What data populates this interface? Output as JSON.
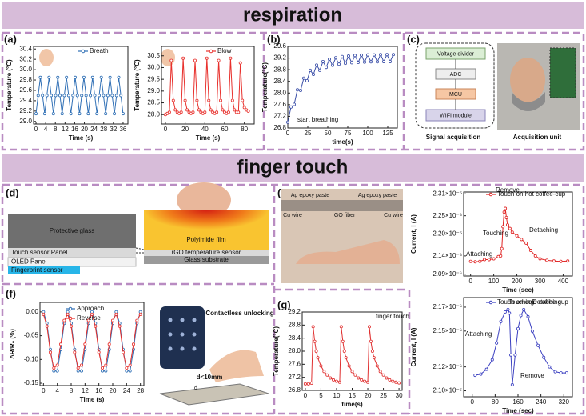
{
  "sections": [
    "respiration",
    "finger touch"
  ],
  "labels": {
    "panels": [
      "(a)",
      "(b)",
      "(c)",
      "(d)",
      "(e)",
      "(f)",
      "(g)"
    ],
    "signal_chain": [
      "Voltage divider",
      "ADC",
      "MCU",
      "WIFI module"
    ],
    "signal_acquisition": "Signal acquisition",
    "acquisition_unit": "Acquisition unit",
    "display_layers": [
      "Protective glass",
      "Touch sensor Panel",
      "OLED Panel",
      "Fingerprint sensor"
    ],
    "sensor_layers": [
      "Polyimide film",
      "rGO temperature sensor",
      "Glass substrate"
    ],
    "photo_labels": [
      "Ag epoxy paste",
      "Ag epoxy paste",
      "rGO fiber",
      "Cu wire",
      "Cu wire"
    ],
    "unlock_title": "Contactless unlocking",
    "distance": "d<10mm",
    "distance_symbol": "d"
  },
  "chart_data": [
    {
      "type": "line",
      "xlabel": "Time (s)",
      "ylabel": "Temperature (°C)",
      "xlim": [
        -1,
        38
      ],
      "ylim": [
        28.95,
        30.45
      ],
      "xticks": [
        0,
        4,
        8,
        12,
        16,
        20,
        24,
        28,
        32,
        36
      ],
      "yticks": [
        {
          "value": 29,
          "label": "29.0"
        },
        29.2,
        29.4,
        29.6,
        29.8,
        {
          "value": 30,
          "label": "30.0"
        },
        30.2,
        30.4
      ],
      "series": [
        {
          "name": "Breath",
          "color": "#2f6fb5",
          "x": [
            0,
            0.9,
            1.8,
            2.7,
            3.6,
            4.5,
            5.4,
            6.3,
            7.2,
            8.1,
            9,
            9.9,
            10.8,
            11.7,
            12.6,
            13.5,
            14.4,
            15.3,
            16.2,
            17.1,
            18,
            18.9,
            19.8,
            20.7,
            21.6,
            22.5,
            23.4,
            24.3,
            25.2,
            26.1,
            27,
            27.9,
            28.8,
            29.7,
            30.6,
            31.5,
            32.4,
            33.3,
            34.2,
            35.1,
            36
          ],
          "values": [
            29.15,
            29.5,
            29.85,
            29.5,
            29.15,
            29.5,
            29.85,
            29.5,
            29.15,
            29.5,
            29.85,
            29.5,
            29.15,
            29.5,
            29.85,
            29.5,
            29.15,
            29.5,
            29.85,
            29.5,
            29.15,
            29.5,
            29.85,
            29.5,
            29.15,
            29.5,
            29.85,
            29.5,
            29.15,
            29.5,
            29.85,
            29.5,
            29.15,
            29.5,
            29.85,
            29.5,
            29.15,
            29.5,
            29.85,
            29.5,
            29.15
          ]
        }
      ]
    },
    {
      "type": "line",
      "xlabel": "Time (s)",
      "ylabel": "Temperature (°C)",
      "xlim": [
        -4,
        90
      ],
      "ylim": [
        27.6,
        30.9
      ],
      "xticks": [
        0,
        20,
        40,
        60,
        80
      ],
      "yticks": [
        {
          "value": 28,
          "label": "28.0"
        },
        28.5,
        {
          "value": 29,
          "label": "29.0"
        },
        29.5,
        {
          "value": 30,
          "label": "30.0"
        },
        30.5
      ],
      "series": [
        {
          "name": "Blow",
          "color": "#e8302c",
          "x": [
            0,
            2,
            4,
            6,
            8,
            10,
            12,
            14,
            16,
            18,
            20,
            22,
            24,
            26,
            28,
            30,
            32,
            34,
            36,
            38,
            40,
            42,
            44,
            46,
            48,
            50,
            52,
            54,
            56,
            58,
            60,
            62,
            64,
            66,
            68,
            70,
            72,
            74,
            76,
            78,
            80,
            82,
            84
          ],
          "values": [
            28.0,
            28.05,
            28.1,
            30.3,
            28.6,
            28.2,
            28.1,
            28.05,
            28.1,
            30.4,
            28.6,
            28.2,
            28.1,
            28.05,
            28.1,
            30.3,
            28.6,
            28.2,
            28.1,
            28.05,
            28.1,
            30.4,
            28.6,
            28.2,
            28.1,
            28.05,
            28.1,
            30.3,
            28.6,
            28.2,
            28.1,
            28.05,
            28.1,
            30.4,
            28.6,
            28.2,
            28.1,
            28.1,
            30.2,
            28.6,
            28.3,
            28.2,
            28.15
          ]
        }
      ]
    },
    {
      "type": "line",
      "xlabel": "time(s)",
      "ylabel": "Temperature(°C)",
      "xlim": [
        0,
        137
      ],
      "ylim": [
        26.8,
        29.6
      ],
      "xticks": [
        0,
        25,
        50,
        75,
        100,
        125
      ],
      "yticks": [
        26.8,
        27.2,
        27.6,
        {
          "value": 28,
          "label": "28.0"
        },
        28.4,
        28.8,
        29.2,
        29.6
      ],
      "annotations": [
        "start breathing"
      ],
      "series": [
        {
          "name": null,
          "color": "#3b4fa8",
          "x": [
            0,
            4,
            8,
            12,
            16,
            20,
            24,
            28,
            32,
            36,
            40,
            44,
            48,
            52,
            56,
            60,
            64,
            68,
            72,
            76,
            80,
            84,
            88,
            92,
            96,
            100,
            104,
            108,
            112,
            116,
            120,
            124,
            128,
            132
          ],
          "values": [
            27.0,
            27.52,
            27.61,
            28.11,
            28.09,
            28.51,
            28.42,
            28.78,
            28.64,
            28.96,
            28.78,
            29.08,
            28.88,
            29.16,
            28.95,
            29.21,
            28.99,
            29.25,
            29.02,
            29.27,
            29.04,
            29.29,
            29.05,
            29.3,
            29.06,
            29.31,
            29.07,
            29.31,
            29.07,
            29.32,
            29.08,
            29.32,
            29.08,
            29.32
          ]
        }
      ]
    },
    {
      "type": "line",
      "xlabel": "Time (sec)",
      "ylabel": "Current, I (A)",
      "xlim": [
        -30,
        440
      ],
      "ylim": [
        2.085e-06,
        2.315e-06
      ],
      "xticks": [
        0,
        100,
        200,
        300,
        400
      ],
      "yticks": [
        {
          "value": 2.09e-06,
          "label": "2.09×10⁻⁶"
        },
        {
          "value": 2.14e-06,
          "label": "2.14×10⁻⁶"
        },
        {
          "value": 2.2e-06,
          "label": "2.20×10⁻⁶"
        },
        {
          "value": 2.25e-06,
          "label": "2.25×10⁻⁶"
        },
        {
          "value": 2.31e-06,
          "label": "2.31×10⁻⁶"
        }
      ],
      "annotations": [
        "Attaching",
        "Touching",
        "Remove",
        "Detaching"
      ],
      "series": [
        {
          "name": "Touch on hot coffee-cup",
          "color": "#e02424",
          "x": [
            0,
            20,
            40,
            60,
            80,
            100,
            120,
            130,
            135,
            140,
            145,
            150,
            155,
            160,
            170,
            180,
            200,
            220,
            240,
            260,
            280,
            300,
            330,
            360,
            390,
            420
          ],
          "values": [
            2.125e-06,
            2.124e-06,
            2.125e-06,
            2.13e-06,
            2.13e-06,
            2.132e-06,
            2.138e-06,
            2.14e-06,
            2.16e-06,
            2.22e-06,
            2.26e-06,
            2.27e-06,
            2.245e-06,
            2.225e-06,
            2.215e-06,
            2.205e-06,
            2.195e-06,
            2.185e-06,
            2.175e-06,
            2.155e-06,
            2.14e-06,
            2.132e-06,
            2.128e-06,
            2.126e-06,
            2.125e-06,
            2.126e-06
          ]
        }
      ]
    },
    {
      "type": "line",
      "xlabel": "Time (sec)",
      "ylabel": "Current, I (A)",
      "xlim": [
        -30,
        350
      ],
      "ylim": [
        2.095e-06,
        2.178e-06
      ],
      "xticks": [
        0,
        80,
        160,
        240,
        320
      ],
      "yticks": [
        {
          "value": 2.1e-06,
          "label": "2.10×10⁻⁶"
        },
        {
          "value": 2.12e-06,
          "label": "2.12×10⁻⁶"
        },
        {
          "value": 2.15e-06,
          "label": "2.15×10⁻⁶"
        },
        {
          "value": 2.17e-06,
          "label": "2.17×10⁻⁶"
        }
      ],
      "annotations": [
        "Attaching",
        "Touching",
        "Detaching",
        "Remove"
      ],
      "series": [
        {
          "name": "Touch on cold coffee-cup",
          "color": "#3a3fc0",
          "x": [
            10,
            30,
            50,
            70,
            85,
            100,
            115,
            125,
            130,
            135,
            140,
            150,
            160,
            170,
            180,
            195,
            210,
            230,
            250,
            270,
            290,
            310,
            330
          ],
          "values": [
            2.113e-06,
            2.114e-06,
            2.118e-06,
            2.126e-06,
            2.14e-06,
            2.158e-06,
            2.166e-06,
            2.168e-06,
            2.165e-06,
            2.13e-06,
            2.105e-06,
            2.13e-06,
            2.152e-06,
            2.163e-06,
            2.168e-06,
            2.162e-06,
            2.15e-06,
            2.138e-06,
            2.128e-06,
            2.12e-06,
            2.116e-06,
            2.115e-06,
            2.115e-06
          ]
        }
      ]
    },
    {
      "type": "line",
      "xlabel": "Time (s)",
      "ylabel": "ΔR/R₀ (%)",
      "xlim": [
        -1,
        29
      ],
      "ylim": [
        -0.155,
        0.02
      ],
      "xticks": [
        0,
        4,
        8,
        12,
        16,
        20,
        24,
        28
      ],
      "yticks": [
        -0.15,
        {
          "value": -0.1,
          "label": "-0.10"
        },
        -0.05,
        {
          "value": 0,
          "label": "0.00"
        }
      ],
      "series": [
        {
          "name": "Approach",
          "color": "#2f6fb5",
          "x": [
            0,
            1,
            2,
            3,
            4,
            5,
            6,
            7,
            8,
            9,
            10,
            11,
            12,
            13,
            14,
            15,
            16,
            17,
            18,
            19,
            20,
            21,
            22,
            23,
            24,
            25,
            26,
            27,
            28
          ],
          "values": [
            0,
            -0.024,
            -0.079,
            -0.124,
            -0.124,
            -0.079,
            -0.024,
            0,
            -0.024,
            -0.079,
            -0.124,
            -0.124,
            -0.079,
            -0.024,
            0,
            -0.024,
            -0.079,
            -0.124,
            -0.124,
            -0.079,
            -0.024,
            0,
            -0.024,
            -0.079,
            -0.124,
            -0.124,
            -0.079,
            -0.024,
            0
          ]
        },
        {
          "name": "Reverse",
          "color": "#e8302c",
          "x": [
            0,
            1,
            2,
            3,
            4,
            5,
            6,
            7,
            8,
            9,
            10,
            11,
            12,
            13,
            14,
            15,
            16,
            17,
            18,
            19,
            20,
            21,
            22,
            23,
            24,
            25,
            26,
            27,
            28
          ],
          "values": [
            -0.005,
            -0.03,
            -0.085,
            -0.118,
            -0.112,
            -0.068,
            -0.018,
            -0.005,
            -0.03,
            -0.085,
            -0.118,
            -0.112,
            -0.068,
            -0.018,
            -0.005,
            -0.03,
            -0.085,
            -0.118,
            -0.112,
            -0.068,
            -0.018,
            -0.005,
            -0.03,
            -0.085,
            -0.118,
            -0.112,
            -0.068,
            -0.018,
            -0.005
          ]
        }
      ]
    },
    {
      "type": "line",
      "xlabel": "time(s)",
      "ylabel": "Temperature(°C)",
      "xlim": [
        -1,
        31
      ],
      "ylim": [
        26.8,
        29.2
      ],
      "xticks": [
        0,
        5,
        10,
        15,
        20,
        25,
        30
      ],
      "yticks": [
        26.8,
        27.2,
        27.6,
        {
          "value": 28,
          "label": "28.0"
        },
        28.4,
        28.8,
        29.2
      ],
      "annotations": [
        "finger touch"
      ],
      "series": [
        {
          "name": null,
          "color": "#e03030",
          "x": [
            0,
            1,
            2,
            2.5,
            3,
            3.5,
            4,
            5,
            6,
            7,
            8,
            9,
            10,
            11,
            11.5,
            12,
            12.5,
            13,
            14,
            15,
            16,
            17,
            18,
            19,
            20,
            20.5,
            21,
            21.5,
            22,
            23,
            24,
            25,
            26,
            27,
            28,
            29,
            30
          ],
          "values": [
            27.0,
            27.0,
            27.02,
            28.75,
            28.3,
            28.0,
            27.8,
            27.55,
            27.38,
            27.27,
            27.18,
            27.12,
            27.08,
            27.05,
            28.75,
            28.3,
            28.0,
            27.8,
            27.55,
            27.38,
            27.27,
            27.18,
            27.12,
            27.08,
            27.05,
            28.75,
            28.3,
            28.0,
            27.8,
            27.55,
            27.38,
            27.27,
            27.18,
            27.12,
            27.08,
            27.05,
            27.03
          ]
        }
      ]
    }
  ]
}
